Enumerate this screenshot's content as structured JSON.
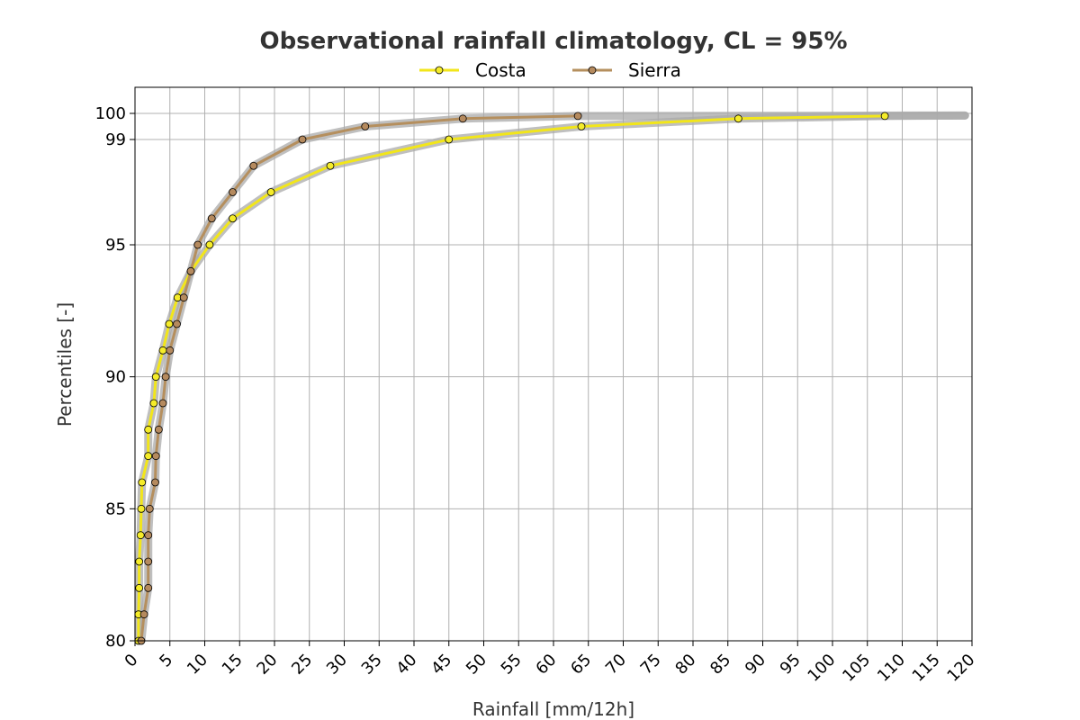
{
  "chart_data": {
    "type": "line",
    "title": "Observational rainfall climatology, CL = 95%",
    "xlabel": "Rainfall [mm/12h]",
    "ylabel": "Percentiles [-]",
    "xlim": [
      0,
      120
    ],
    "ylim": [
      80,
      100
    ],
    "x_ticks": [
      0,
      5,
      10,
      15,
      20,
      25,
      30,
      35,
      40,
      45,
      50,
      55,
      60,
      65,
      70,
      75,
      80,
      85,
      90,
      95,
      100,
      105,
      110,
      115,
      120
    ],
    "x_tick_labels": [
      "0",
      "5",
      "10",
      "15",
      "20",
      "25",
      "30",
      "35",
      "40",
      "45",
      "50",
      "55",
      "60",
      "65",
      "70",
      "75",
      "80",
      "85",
      "90",
      "95",
      "100",
      "105",
      "110",
      "115",
      "120"
    ],
    "y_ticks": [
      80,
      85,
      90,
      95,
      99,
      100
    ],
    "y_tick_labels": [
      "80",
      "85",
      "90",
      "95",
      "99",
      "100"
    ],
    "y_scale": "nonlinear (compressed above 95)",
    "grid": true,
    "legend_position": "top-center",
    "band_color": "#aaaaaa",
    "series": [
      {
        "name": "Costa",
        "color": "#f2e61a",
        "marker_fill": "#f5ec2a",
        "points": [
          {
            "x": 0.5,
            "y": 80
          },
          {
            "x": 0.5,
            "y": 81
          },
          {
            "x": 0.6,
            "y": 82
          },
          {
            "x": 0.6,
            "y": 83
          },
          {
            "x": 0.8,
            "y": 84
          },
          {
            "x": 0.9,
            "y": 85
          },
          {
            "x": 1.0,
            "y": 86
          },
          {
            "x": 1.9,
            "y": 87
          },
          {
            "x": 1.9,
            "y": 88
          },
          {
            "x": 2.7,
            "y": 89
          },
          {
            "x": 3.0,
            "y": 90
          },
          {
            "x": 4.0,
            "y": 91
          },
          {
            "x": 4.9,
            "y": 92
          },
          {
            "x": 6.1,
            "y": 93
          },
          {
            "x": 8.0,
            "y": 94
          },
          {
            "x": 10.7,
            "y": 95
          },
          {
            "x": 14.0,
            "y": 96
          },
          {
            "x": 19.5,
            "y": 97
          },
          {
            "x": 28.0,
            "y": 98
          },
          {
            "x": 45.0,
            "y": 99
          },
          {
            "x": 64.0,
            "y": 99.5
          },
          {
            "x": 86.5,
            "y": 99.8
          },
          {
            "x": 107.5,
            "y": 99.9
          }
        ]
      },
      {
        "name": "Sierra",
        "color": "#b58f5e",
        "marker_fill": "#b58a5e",
        "points": [
          {
            "x": 0.9,
            "y": 80
          },
          {
            "x": 1.3,
            "y": 81
          },
          {
            "x": 1.9,
            "y": 82
          },
          {
            "x": 1.9,
            "y": 83
          },
          {
            "x": 1.9,
            "y": 84
          },
          {
            "x": 2.1,
            "y": 85
          },
          {
            "x": 2.9,
            "y": 86
          },
          {
            "x": 3.0,
            "y": 87
          },
          {
            "x": 3.4,
            "y": 88
          },
          {
            "x": 4.0,
            "y": 89
          },
          {
            "x": 4.4,
            "y": 90
          },
          {
            "x": 5.0,
            "y": 91
          },
          {
            "x": 6.0,
            "y": 92
          },
          {
            "x": 7.0,
            "y": 93
          },
          {
            "x": 8.0,
            "y": 94
          },
          {
            "x": 9.0,
            "y": 95
          },
          {
            "x": 11.0,
            "y": 96
          },
          {
            "x": 14.0,
            "y": 97
          },
          {
            "x": 17.0,
            "y": 98
          },
          {
            "x": 24.0,
            "y": 99
          },
          {
            "x": 33.0,
            "y": 99.5
          },
          {
            "x": 47.0,
            "y": 99.8
          },
          {
            "x": 63.5,
            "y": 99.9
          }
        ]
      }
    ]
  }
}
